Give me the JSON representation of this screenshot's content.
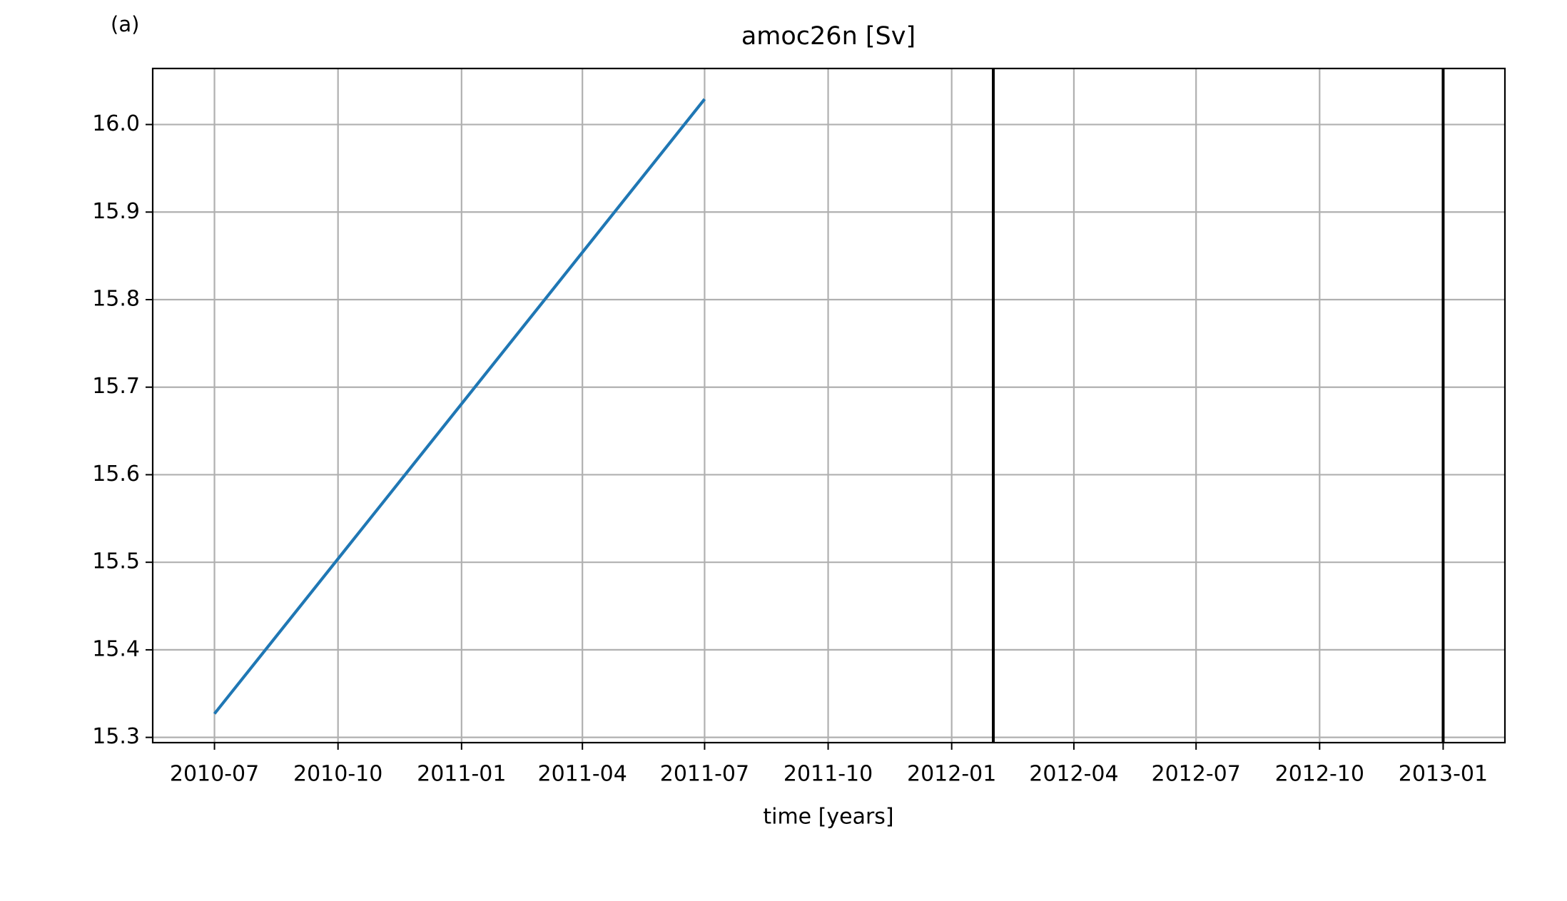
{
  "chart_data": {
    "type": "line",
    "panel_label": "(a)",
    "title": "amoc26n [Sv]",
    "xlabel": "time [years]",
    "x": [
      "2010-07",
      "2011-07"
    ],
    "series": [
      {
        "name": "amoc26n",
        "color": "#1f77b4",
        "values": [
          15.327,
          16.029
        ]
      }
    ],
    "vlines": {
      "x": [
        "2012-02",
        "2013-01"
      ],
      "color": "#000000"
    },
    "xlim": [
      "2010-05-16",
      "2013-02-16"
    ],
    "xticks": [
      "2010-07",
      "2010-10",
      "2011-01",
      "2011-04",
      "2011-07",
      "2011-10",
      "2012-01",
      "2012-04",
      "2012-07",
      "2012-10",
      "2013-01"
    ],
    "ylim": [
      15.294,
      16.064
    ],
    "yticks": [
      15.3,
      15.4,
      15.5,
      15.6,
      15.7,
      15.8,
      15.9,
      {
        "value": 16.0,
        "label": "16.0"
      }
    ],
    "grid": true
  }
}
